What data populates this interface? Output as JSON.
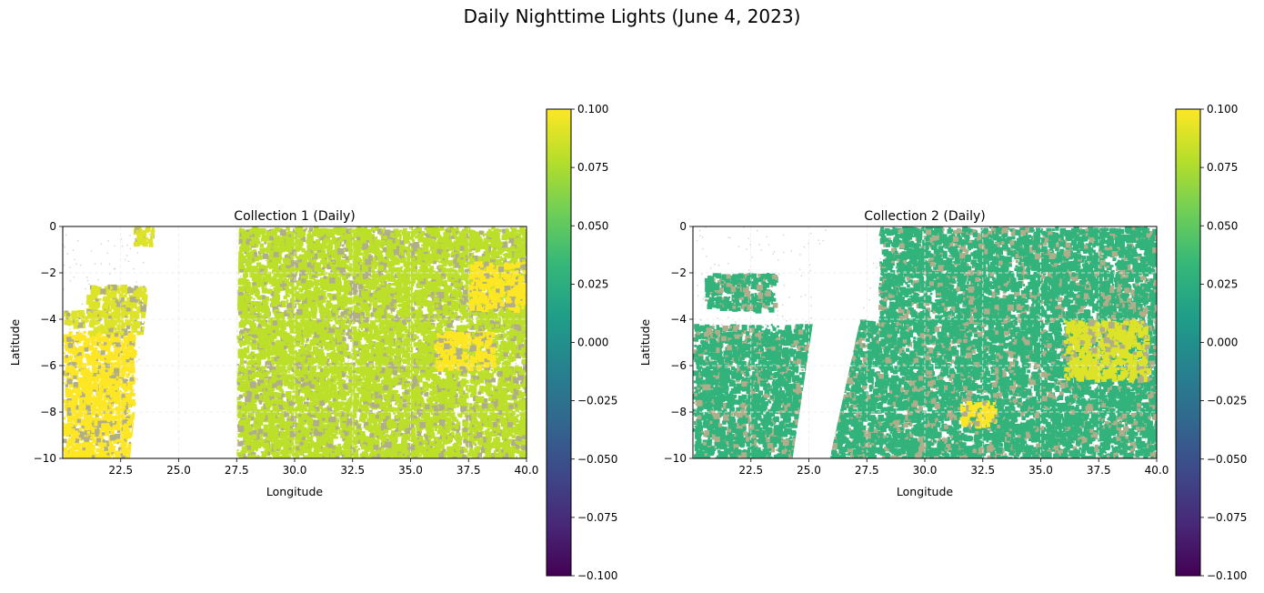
{
  "figure": {
    "title": "Daily Nighttime Lights (June 4, 2023)"
  },
  "chart_data": [
    {
      "type": "heatmap",
      "title": "Collection 1 (Daily)",
      "xlabel": "Longitude",
      "ylabel": "Latitude",
      "xlim": [
        20,
        40
      ],
      "ylim": [
        -10,
        0
      ],
      "xticks": [
        22.5,
        25.0,
        27.5,
        30.0,
        32.5,
        35.0,
        37.5,
        40.0
      ],
      "xtick_labels": [
        "22.5",
        "25.0",
        "27.5",
        "30.0",
        "32.5",
        "35.0",
        "37.5",
        "40.0"
      ],
      "yticks": [
        0,
        -2,
        -4,
        -6,
        -8,
        -10
      ],
      "ytick_labels": [
        "0",
        "−2",
        "−4",
        "−6",
        "−8",
        "−10"
      ],
      "grid": true,
      "colorbar": {
        "vmin": -0.1,
        "vmax": 0.1,
        "colormap": "viridis",
        "ticks": [
          0.1,
          0.075,
          0.05,
          0.025,
          0.0,
          -0.025,
          -0.05,
          -0.075,
          -0.1
        ],
        "tick_labels": [
          "0.100",
          "0.075",
          "0.050",
          "0.025",
          "0.000",
          "−0.025",
          "−0.050",
          "−0.075",
          "−0.100"
        ]
      },
      "no_data_swath": {
        "top_lon": [
          24.0,
          27.6
        ],
        "bottom_lon": [
          22.9,
          27.4
        ]
      },
      "regions": [
        {
          "lon": [
            20.0,
            23.0
          ],
          "lat": [
            -10,
            -4.5
          ],
          "value": 0.1
        },
        {
          "lon": [
            21.0,
            23.5
          ],
          "lat": [
            -4.5,
            -2.5
          ],
          "value": 0.09
        },
        {
          "lon": [
            20.0,
            21.5
          ],
          "lat": [
            -4.2,
            -3.6
          ],
          "value": 0.09
        },
        {
          "lon": [
            23.0,
            24.2
          ],
          "lat": [
            0,
            -0.7
          ],
          "value": 0.09
        },
        {
          "lon": [
            27.5,
            40.0
          ],
          "lat": [
            0,
            -10
          ],
          "value": 0.08
        },
        {
          "lon": [
            36.0,
            38.5
          ],
          "lat": [
            -4.5,
            -6.0
          ],
          "value": 0.1
        },
        {
          "lon": [
            37.5,
            40.0
          ],
          "lat": [
            -1.5,
            -3.5
          ],
          "value": 0.1
        }
      ]
    },
    {
      "type": "heatmap",
      "title": "Collection 2 (Daily)",
      "xlabel": "Longitude",
      "ylabel": "Latitude",
      "xlim": [
        20,
        40
      ],
      "ylim": [
        -10,
        0
      ],
      "xticks": [
        22.5,
        25.0,
        27.5,
        30.0,
        32.5,
        35.0,
        37.5,
        40.0
      ],
      "xtick_labels": [
        "22.5",
        "25.0",
        "27.5",
        "30.0",
        "32.5",
        "35.0",
        "37.5",
        "40.0"
      ],
      "yticks": [
        0,
        -2,
        -4,
        -6,
        -8,
        -10
      ],
      "ytick_labels": [
        "0",
        "−2",
        "−4",
        "−6",
        "−8",
        "−10"
      ],
      "grid": true,
      "colorbar": {
        "vmin": -0.1,
        "vmax": 0.1,
        "colormap": "viridis",
        "ticks": [
          0.1,
          0.075,
          0.05,
          0.025,
          0.0,
          -0.025,
          -0.05,
          -0.075,
          -0.1
        ],
        "tick_labels": [
          "0.100",
          "0.075",
          "0.050",
          "0.025",
          "0.000",
          "−0.025",
          "−0.050",
          "−0.075",
          "−0.100"
        ]
      },
      "no_data_swath": {
        "top_lon": [
          25.8,
          28.1
        ],
        "bottom_lon": [
          24.3,
          25.9
        ]
      },
      "regions": [
        {
          "lon": [
            20.0,
            25.5
          ],
          "lat": [
            -10,
            -4.2
          ],
          "value": 0.03
        },
        {
          "lon": [
            20.5,
            23.5
          ],
          "lat": [
            -2.0,
            -3.5
          ],
          "value": 0.03
        },
        {
          "lon": [
            25.9,
            40.0
          ],
          "lat": [
            -4.0,
            -10
          ],
          "value": 0.03
        },
        {
          "lon": [
            28.0,
            40.0
          ],
          "lat": [
            0,
            -4.0
          ],
          "value": 0.03
        },
        {
          "lon": [
            36.0,
            39.5
          ],
          "lat": [
            -4.0,
            -6.5
          ],
          "value": 0.09
        },
        {
          "lon": [
            31.5,
            33.0
          ],
          "lat": [
            -7.5,
            -8.5
          ],
          "value": 0.1
        }
      ]
    }
  ]
}
